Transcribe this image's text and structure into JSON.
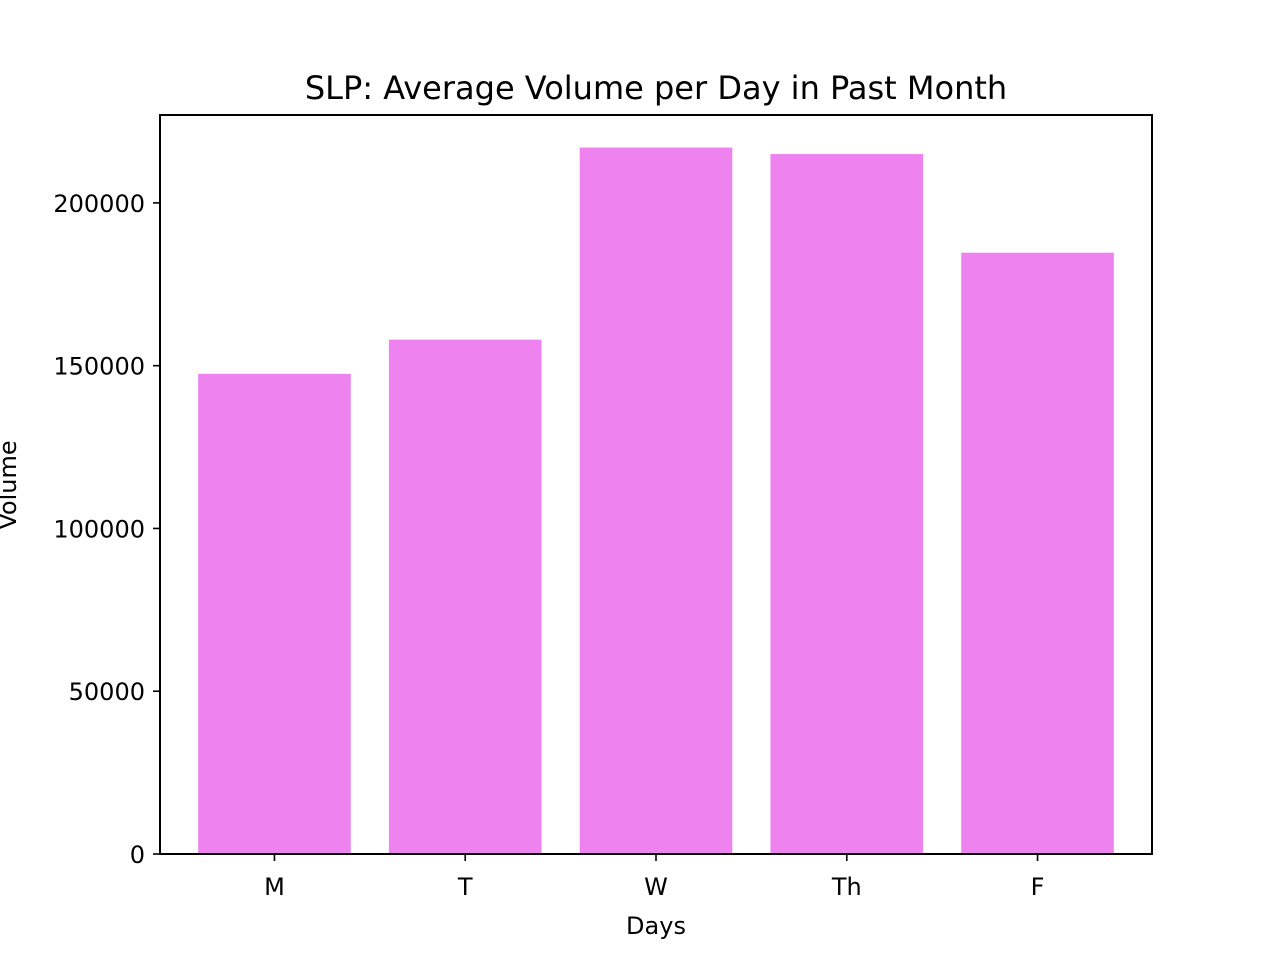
{
  "chart_data": {
    "type": "bar",
    "title": "SLP: Average Volume per Day in Past Month",
    "xlabel": "Days",
    "ylabel": "Volume",
    "categories": [
      "M",
      "T",
      "W",
      "Th",
      "F"
    ],
    "values": [
      147500,
      158000,
      217000,
      215000,
      184700
    ],
    "ylim": [
      0,
      227000
    ],
    "yticks": [
      0,
      50000,
      100000,
      150000,
      200000
    ],
    "ytick_labels": [
      "0",
      "50000",
      "100000",
      "150000",
      "200000"
    ],
    "bar_color": "#ee82ee",
    "grid": false,
    "legend": "none"
  }
}
